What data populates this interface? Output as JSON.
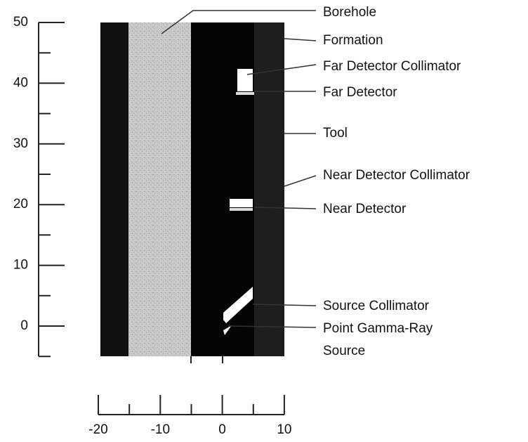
{
  "y_axis": {
    "ticks": [
      "50",
      "40",
      "30",
      "20",
      "10",
      "0"
    ]
  },
  "x_axis": {
    "ticks": [
      "-20",
      "-10",
      "0",
      "10"
    ]
  },
  "labels": [
    [
      "Borehole"
    ],
    [
      "Formation"
    ],
    [
      "Far Detector Collimator"
    ],
    [
      "Far Detector"
    ],
    [
      "Tool"
    ],
    [
      "Near Detector Collimator"
    ],
    [
      "Near Detector"
    ],
    [
      "Source Collimator"
    ],
    [
      "Point Gamma-Ray",
      "Source"
    ]
  ]
}
